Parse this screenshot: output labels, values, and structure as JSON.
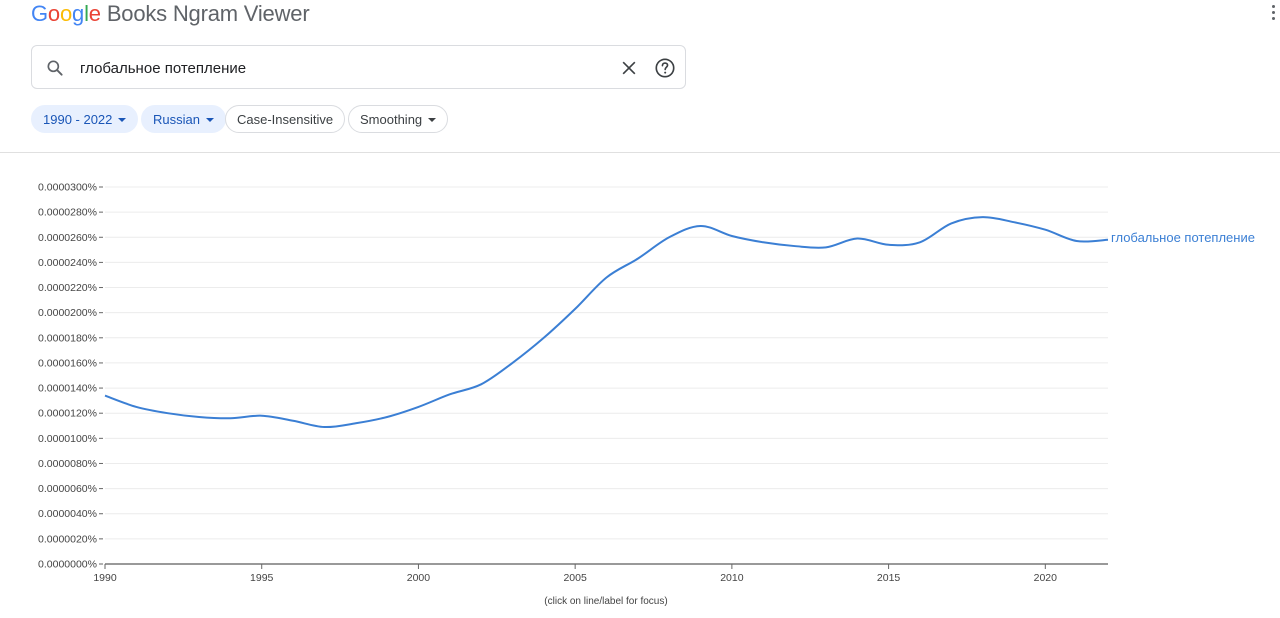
{
  "header": {
    "logo_text": "Google",
    "app_title": "Books Ngram Viewer",
    "menu_icon": "more-vert-icon"
  },
  "search": {
    "query": "глобальное потепление",
    "icons": {
      "search": "search-icon",
      "clear": "close-icon",
      "help": "help-icon"
    }
  },
  "filters": {
    "year_range": "1990 - 2022",
    "corpus": "Russian",
    "case": "Case-Insensitive",
    "smoothing": "Smoothing"
  },
  "colors": {
    "accent": "#1a56b7",
    "line": "#3b7fd4",
    "chip_active_bg": "#e8f0fe"
  },
  "chart_caption": "(click on line/label for focus)",
  "chart_data": {
    "type": "line",
    "xlim": [
      1990,
      2022
    ],
    "ylim": [
      0,
      3e-05
    ],
    "x_ticks": [
      1990,
      1995,
      2000,
      2005,
      2010,
      2015,
      2020
    ],
    "y_tick_labels": [
      "0.0000000%",
      "0.0000020%",
      "0.0000040%",
      "0.0000060%",
      "0.0000080%",
      "0.0000100%",
      "0.0000120%",
      "0.0000140%",
      "0.0000160%",
      "0.0000180%",
      "0.0000200%",
      "0.0000220%",
      "0.0000240%",
      "0.0000260%",
      "0.0000280%",
      "0.0000300%"
    ],
    "y_tick_values": [
      0,
      2e-06,
      4e-06,
      6e-06,
      8e-06,
      1e-05,
      1.2e-05,
      1.4e-05,
      1.6e-05,
      1.8e-05,
      2e-05,
      2.2e-05,
      2.4e-05,
      2.6e-05,
      2.8e-05,
      3e-05
    ],
    "grid": true,
    "legend_placement": "right-end-of-line",
    "series": [
      {
        "name": "глобальное потепление",
        "x": [
          1990,
          1991,
          1992,
          1993,
          1994,
          1995,
          1996,
          1997,
          1998,
          1999,
          2000,
          2001,
          2002,
          2003,
          2004,
          2005,
          2006,
          2007,
          2008,
          2009,
          2010,
          2011,
          2012,
          2013,
          2014,
          2015,
          2016,
          2017,
          2018,
          2019,
          2020,
          2021,
          2022
        ],
        "y": [
          1.34e-05,
          1.25e-05,
          1.2e-05,
          1.17e-05,
          1.16e-05,
          1.18e-05,
          1.14e-05,
          1.09e-05,
          1.12e-05,
          1.17e-05,
          1.25e-05,
          1.35e-05,
          1.43e-05,
          1.6e-05,
          1.8e-05,
          2.03e-05,
          2.28e-05,
          2.43e-05,
          2.6e-05,
          2.69e-05,
          2.61e-05,
          2.56e-05,
          2.53e-05,
          2.52e-05,
          2.59e-05,
          2.54e-05,
          2.56e-05,
          2.71e-05,
          2.76e-05,
          2.72e-05,
          2.66e-05,
          2.57e-05,
          2.58e-05
        ]
      }
    ]
  }
}
